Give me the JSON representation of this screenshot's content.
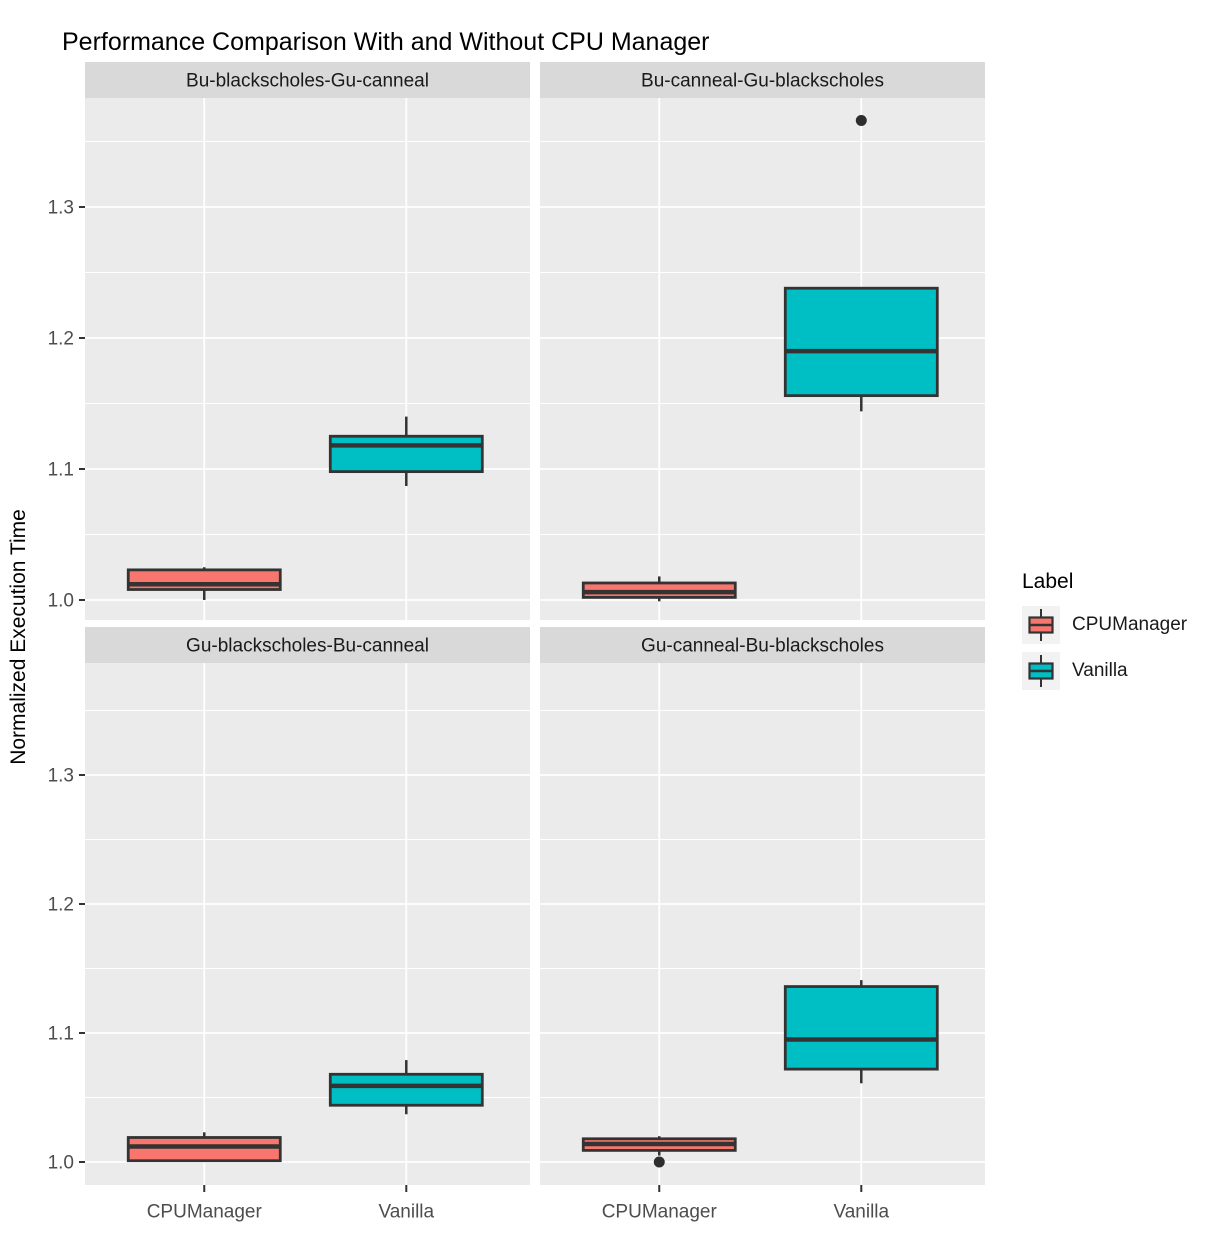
{
  "title": "Performance Comparison With and Without CPU Manager",
  "y_axis": {
    "title": "Normalized Execution Time",
    "tick_labels": [
      "1.0",
      "1.1",
      "1.2",
      "1.3"
    ]
  },
  "x_axis": {
    "categories": [
      "CPUManager",
      "Vanilla"
    ]
  },
  "legend": {
    "title": "Label",
    "items": [
      {
        "label": "CPUManager",
        "color": "#F8766D"
      },
      {
        "label": "Vanilla",
        "color": "#00BFC4"
      }
    ]
  },
  "theme": {
    "panel_bg": "#EBEBEB",
    "strip_bg": "#D9D9D9",
    "grid_color": "#FFFFFF",
    "box_outline": "#333333",
    "outlier_color": "#2E2E2E",
    "tick_text_color": "#4D4D4D",
    "strip_text_color": "#1A1A1A",
    "legend_key_bg": "#F2F2F2"
  },
  "chart_data": {
    "type": "boxplot",
    "title": "Performance Comparison With and Without CPU Manager",
    "ylabel": "Normalized Execution Time",
    "xlabel": "",
    "categories": [
      "CPUManager",
      "Vanilla"
    ],
    "yticks": [
      1.0,
      1.1,
      1.2,
      1.3
    ],
    "y_minor": [
      0.95,
      1.05,
      1.15,
      1.25,
      1.35
    ],
    "ylim": [
      0.983,
      1.38
    ],
    "grid": "on",
    "legend_position": "right",
    "facet_layout": "2x2",
    "facets": [
      {
        "label": "Bu-blackscholes-Gu-canneal",
        "boxes": [
          {
            "category": "CPUManager",
            "min": 1.0,
            "q1": 1.008,
            "median": 1.012,
            "q3": 1.023,
            "max": 1.025,
            "outliers": []
          },
          {
            "category": "Vanilla",
            "min": 1.087,
            "q1": 1.098,
            "median": 1.118,
            "q3": 1.125,
            "max": 1.14,
            "outliers": []
          }
        ]
      },
      {
        "label": "Bu-canneal-Gu-blackscholes",
        "boxes": [
          {
            "category": "CPUManager",
            "min": 0.999,
            "q1": 1.002,
            "median": 1.006,
            "q3": 1.013,
            "max": 1.018,
            "outliers": []
          },
          {
            "category": "Vanilla",
            "min": 1.144,
            "q1": 1.156,
            "median": 1.19,
            "q3": 1.238,
            "max": 1.238,
            "outliers": [
              1.366
            ]
          }
        ]
      },
      {
        "label": "Gu-blackscholes-Bu-canneal",
        "boxes": [
          {
            "category": "CPUManager",
            "min": 1.001,
            "q1": 1.001,
            "median": 1.012,
            "q3": 1.019,
            "max": 1.023,
            "outliers": []
          },
          {
            "category": "Vanilla",
            "min": 1.037,
            "q1": 1.044,
            "median": 1.059,
            "q3": 1.068,
            "max": 1.079,
            "outliers": []
          }
        ]
      },
      {
        "label": "Gu-canneal-Bu-blackscholes",
        "boxes": [
          {
            "category": "CPUManager",
            "min": 1.005,
            "q1": 1.009,
            "median": 1.014,
            "q3": 1.018,
            "max": 1.02,
            "outliers": [
              1.0
            ]
          },
          {
            "category": "Vanilla",
            "min": 1.061,
            "q1": 1.072,
            "median": 1.095,
            "q3": 1.136,
            "max": 1.141,
            "outliers": []
          }
        ]
      }
    ]
  }
}
